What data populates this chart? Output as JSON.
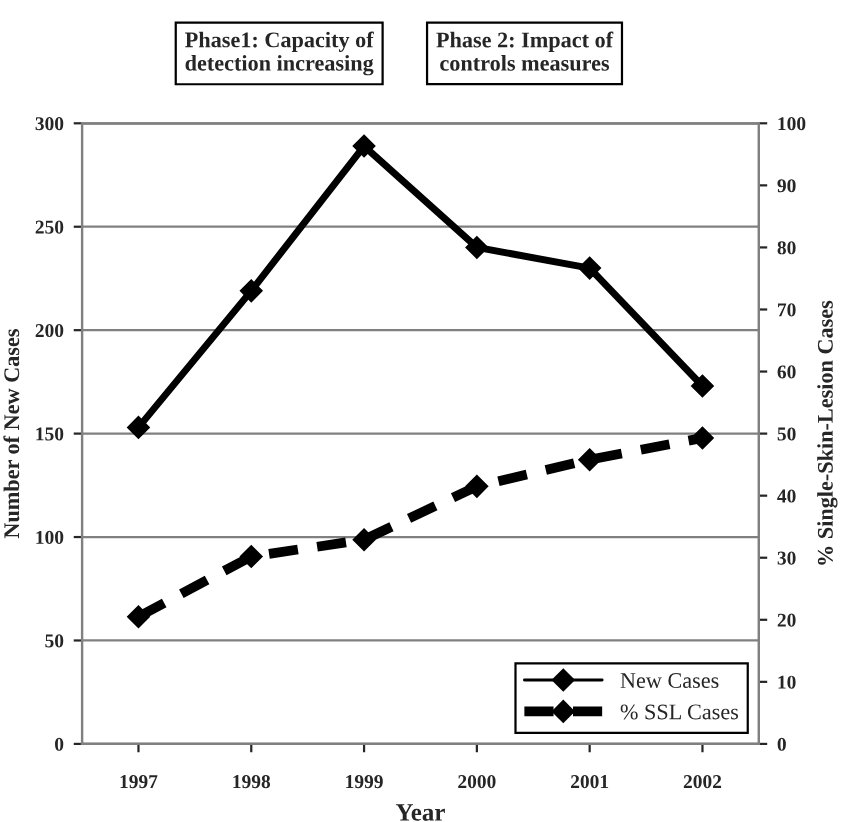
{
  "chart_data": {
    "type": "line",
    "categories": [
      "1997",
      "1998",
      "1999",
      "2000",
      "2001",
      "2002"
    ],
    "xlabel": "Year",
    "ylabel": "Number of New Cases",
    "y2label": "% Single-Skin-Lesion Cases",
    "annotations": [
      "Phase1: Capacity of\ndetection increasing",
      "Phase 2: Impact of\ncontrols measures"
    ],
    "series": [
      {
        "name": "New Cases",
        "color": "#000000",
        "values": [
          153,
          219,
          289,
          240,
          230,
          173
        ],
        "line_style": "solid"
      },
      {
        "name": "% SSL Cases",
        "color": "#000000",
        "values": [
          20.5,
          30.2,
          32.9,
          41.5,
          45.8,
          49.3
        ],
        "axis": "y2",
        "line_style": "dashed"
      }
    ],
    "ylim": [
      0,
      300
    ],
    "yticks": [
      0,
      50,
      100,
      150,
      200,
      250,
      300
    ],
    "y2lim": [
      0,
      100
    ],
    "y2ticks": [
      0,
      10,
      20,
      30,
      40,
      50,
      60,
      70,
      80,
      90,
      100
    ],
    "grid": "y",
    "legend": "bottom right",
    "marker": "diamond"
  }
}
